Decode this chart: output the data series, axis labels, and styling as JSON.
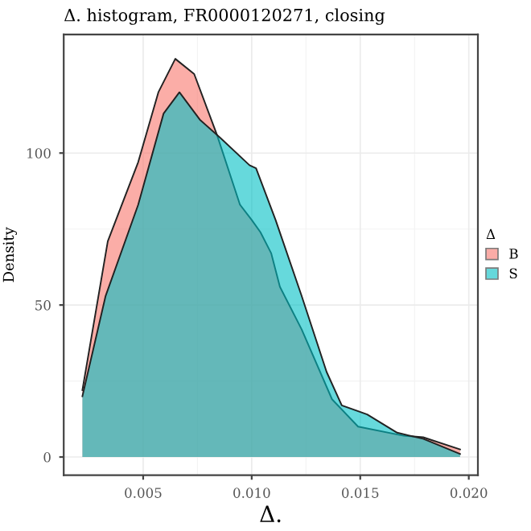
{
  "chart_data": {
    "type": "area",
    "title": "Δ. histogram, FR0000120271, closing",
    "xlabel": "Δ.",
    "ylabel": "Density",
    "legend_title": "Δ",
    "series": [
      {
        "name": "B",
        "color": "#f8766d",
        "x": [
          0.0022,
          0.00337,
          0.00477,
          0.0057,
          0.00648,
          0.00735,
          0.0084,
          0.00946,
          0.01,
          0.0104,
          0.0109,
          0.0113,
          0.0123,
          0.0137,
          0.0149,
          0.017,
          0.0179,
          0.0196
        ],
        "values": [
          22,
          71,
          97,
          120,
          131,
          126,
          106,
          83,
          78,
          74,
          67,
          56,
          42,
          19,
          10,
          7,
          6.5,
          2.5
        ]
      },
      {
        "name": "S",
        "color": "#00bfc4",
        "x": [
          0.0022,
          0.00327,
          0.00477,
          0.00594,
          0.00667,
          0.00761,
          0.00855,
          0.0099,
          0.0102,
          0.0111,
          0.0123,
          0.01345,
          0.01415,
          0.01532,
          0.0167,
          0.0179,
          0.0196
        ],
        "values": [
          20,
          53,
          83,
          113,
          120,
          111,
          105,
          96,
          95,
          78,
          53,
          28,
          17,
          14,
          8,
          6,
          1
        ]
      }
    ],
    "xlim": [
      0.00134,
      0.02042
    ],
    "ylim": [
      -6,
      139
    ],
    "xticks": [
      {
        "value": 0.005,
        "label": "0.005"
      },
      {
        "value": 0.01,
        "label": "0.010"
      },
      {
        "value": 0.015,
        "label": "0.015"
      },
      {
        "value": 0.02,
        "label": "0.020"
      }
    ],
    "yticks": [
      0,
      50,
      100
    ],
    "grid": true,
    "legend": "right"
  }
}
